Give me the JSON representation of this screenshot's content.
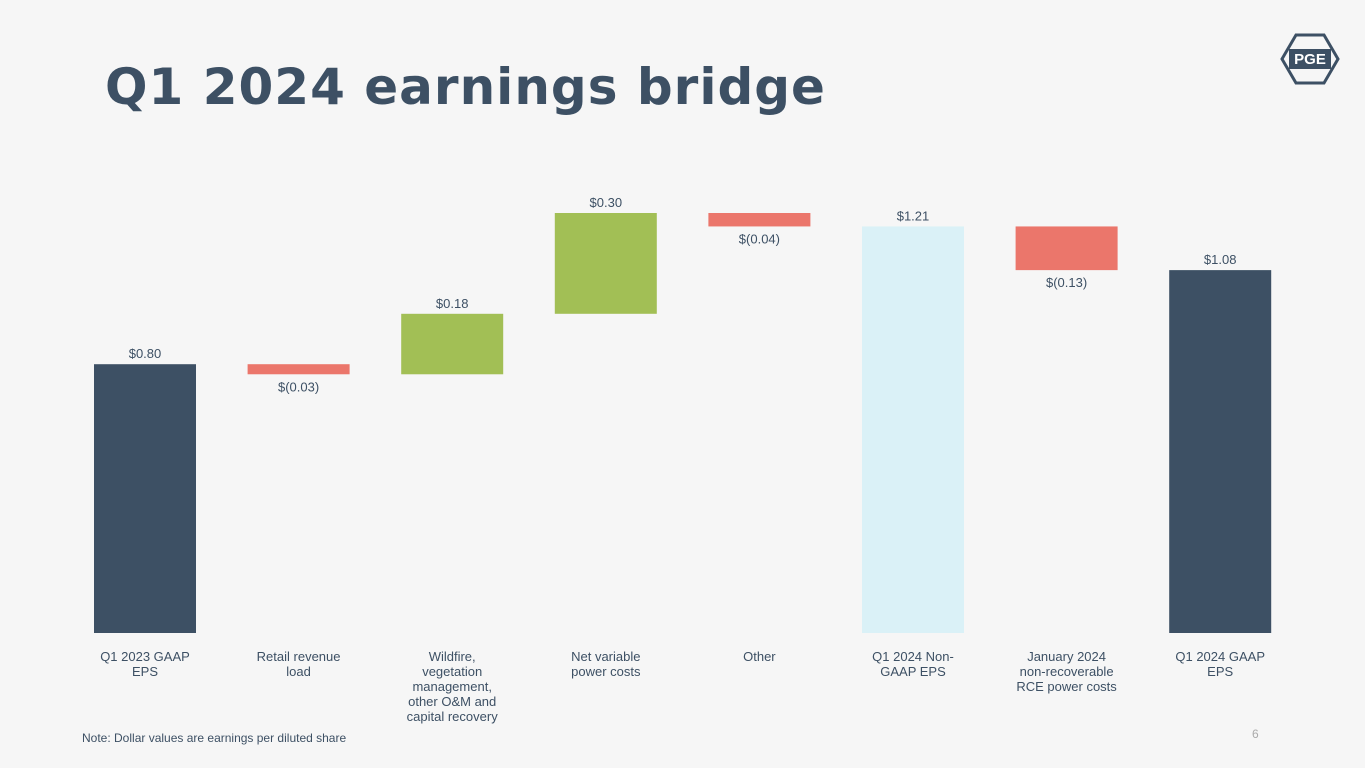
{
  "chart_data": {
    "type": "waterfall",
    "title": "Q1 2024 earnings bridge",
    "categories": [
      "Q1 2023 GAAP EPS",
      "Retail revenue load",
      "Wildfire, vegetation management, other O&M and capital recovery",
      "Net variable power costs",
      "Other",
      "Q1 2024 Non-GAAP EPS",
      "January 2024 non-recoverable RCE power costs",
      "Q1 2024 GAAP EPS"
    ],
    "values": [
      0.8,
      -0.03,
      0.18,
      0.3,
      -0.04,
      1.21,
      -0.13,
      1.08
    ],
    "value_labels": [
      "$0.80",
      "$(0.03)",
      "$0.18",
      "$0.30",
      "$(0.04)",
      "$1.21",
      "$(0.13)",
      "$1.08"
    ],
    "measure": [
      "absolute",
      "relative",
      "relative",
      "relative",
      "relative",
      "absolute",
      "relative",
      "absolute"
    ],
    "colors": [
      "#3d5064",
      "#eb766b",
      "#a2bf55",
      "#a2bf55",
      "#eb766b",
      "#daf1f7",
      "#eb766b",
      "#3d5064"
    ],
    "note": "Note: Dollar values are earnings per diluted share",
    "page_number": "6",
    "logo": "PGE"
  }
}
